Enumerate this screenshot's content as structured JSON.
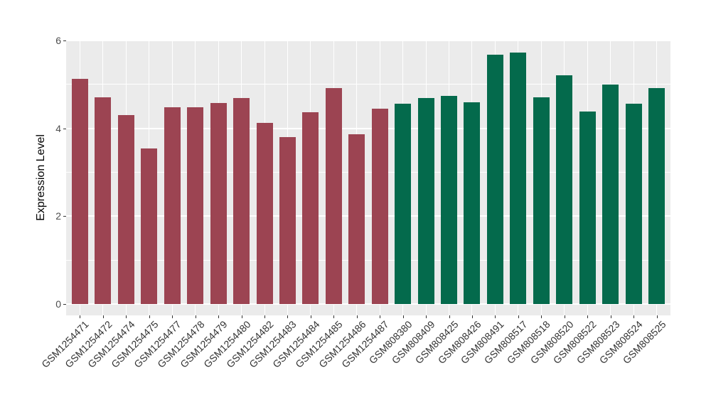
{
  "chart_data": {
    "type": "bar",
    "title": "",
    "xlabel": "",
    "ylabel": "Expression Level",
    "ylim": [
      0,
      6
    ],
    "yticks": [
      0,
      2,
      4,
      6
    ],
    "yticks_minor": [
      1,
      3,
      5
    ],
    "ytick_labels": [
      "0",
      "2",
      "4",
      "6"
    ],
    "grid": true,
    "legend_position": "none",
    "categories": [
      "GSM1254471",
      "GSM1254472",
      "GSM1254474",
      "GSM1254475",
      "GSM1254477",
      "GSM1254478",
      "GSM1254479",
      "GSM1254480",
      "GSM1254482",
      "GSM1254483",
      "GSM1254484",
      "GSM1254485",
      "GSM1254486",
      "GSM1254487",
      "GSM808380",
      "GSM808409",
      "GSM808425",
      "GSM808426",
      "GSM808491",
      "GSM808517",
      "GSM808518",
      "GSM808520",
      "GSM808522",
      "GSM808523",
      "GSM808524",
      "GSM808525"
    ],
    "values": [
      5.13,
      4.7,
      4.31,
      3.54,
      4.48,
      4.48,
      4.58,
      4.69,
      4.12,
      3.8,
      4.36,
      4.92,
      3.86,
      4.44,
      4.56,
      4.69,
      4.74,
      4.6,
      5.68,
      5.73,
      4.71,
      5.2,
      4.39,
      4.99,
      4.56,
      4.92
    ],
    "groups": [
      0,
      0,
      0,
      0,
      0,
      0,
      0,
      0,
      0,
      0,
      0,
      0,
      0,
      0,
      1,
      1,
      1,
      1,
      1,
      1,
      1,
      1,
      1,
      1,
      1,
      1
    ],
    "group_colors": [
      "#9C4452",
      "#046A4C"
    ]
  },
  "style": {
    "background": "#FFFFFF",
    "panel_background": "#EBEBEB",
    "grid_color": "#FFFFFF",
    "tick_color": "#333333",
    "axis_text_color": "#4D4D4D",
    "axis_title_color": "#000000"
  }
}
